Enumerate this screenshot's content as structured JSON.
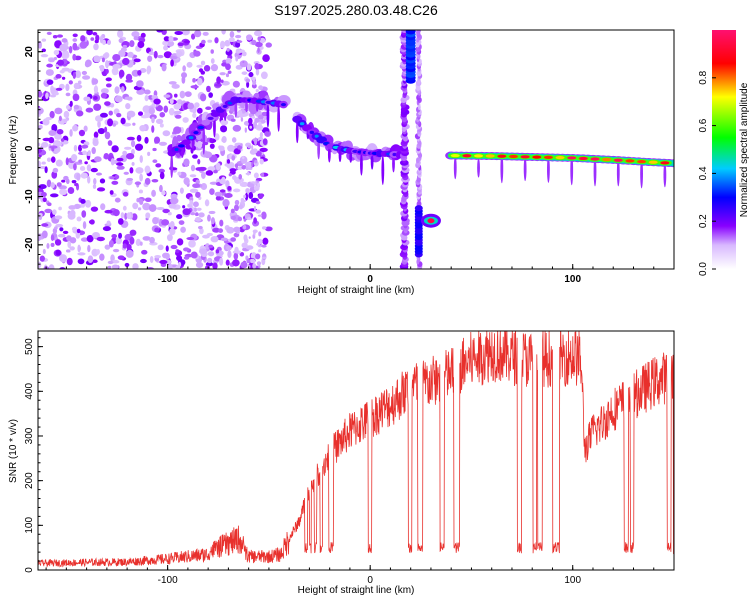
{
  "title": "S197.2025.280.03.48.C26",
  "chart_data": [
    {
      "type": "heatmap",
      "xlabel": "Height of straight line (km)",
      "ylabel": "Frequency (Hz)",
      "xlim": [
        -164,
        150
      ],
      "ylim": [
        -25,
        24.5
      ],
      "x_ticks": [
        -100,
        0,
        100
      ],
      "x_tick_labels": [
        "-100",
        "0",
        "100"
      ],
      "y_ticks": [
        20,
        10,
        0,
        -10,
        -20
      ],
      "y_tick_labels": [
        "20",
        "10",
        "0",
        "-10",
        "-20"
      ],
      "colorbar": {
        "label": "Normalized spectral amplitude",
        "range": [
          0,
          1
        ],
        "ticks": [
          0.0,
          0.2,
          0.4,
          0.6,
          0.8
        ],
        "tick_labels": [
          "0.0",
          "0.2",
          "0.4",
          "0.6",
          "0.8"
        ],
        "colors": [
          "#ffffff",
          "#8800ff",
          "#0000ff",
          "#00ccff",
          "#00ff00",
          "#ffff00",
          "#ff0000",
          "#ff1070"
        ]
      },
      "features": [
        {
          "name": "noise region",
          "x_range": [
            -164,
            -50
          ],
          "amplitude": 0.1
        },
        {
          "name": "rising trace",
          "points": [
            [
              -98,
              -1
            ],
            [
              -90,
              1.5
            ],
            [
              -82,
              5
            ],
            [
              -74,
              8
            ],
            [
              -67,
              10
            ],
            [
              -60,
              10
            ],
            [
              -50,
              9.5
            ],
            [
              -42,
              9
            ]
          ],
          "amplitude": 0.35
        },
        {
          "name": "dip trace",
          "points": [
            [
              -36,
              6
            ],
            [
              -28,
              3
            ],
            [
              -20,
              0.5
            ],
            [
              -10,
              -0.5
            ],
            [
              0,
              -1
            ],
            [
              10,
              -1.2
            ],
            [
              15,
              -1.4
            ]
          ],
          "amplitude": 0.4
        },
        {
          "name": "vertical burst 1",
          "x": 17,
          "y_range": [
            -25,
            24.5
          ],
          "amplitude": 0.15
        },
        {
          "name": "vertical burst 2",
          "x": 24,
          "y_range": [
            -25,
            24.5
          ],
          "amplitude": 0.12
        },
        {
          "name": "isolated blob",
          "x": 30,
          "y": -15,
          "amplitude": 0.95
        },
        {
          "name": "strong trace",
          "points": [
            [
              40,
              -1.5
            ],
            [
              60,
              -1.6
            ],
            [
              80,
              -1.8
            ],
            [
              100,
              -2.0
            ],
            [
              120,
              -2.4
            ],
            [
              140,
              -2.9
            ],
            [
              150,
              -3.1
            ]
          ],
          "amplitude": 0.9
        }
      ]
    },
    {
      "type": "line",
      "xlabel": "Height of straight line (km)",
      "ylabel": "SNR (10 * v/v)",
      "xlim": [
        -164,
        150
      ],
      "ylim": [
        0,
        535
      ],
      "x_ticks": [
        -100,
        0,
        100
      ],
      "x_tick_labels": [
        "-100",
        "0",
        "100"
      ],
      "y_ticks": [
        0,
        100,
        200,
        300,
        400,
        500
      ],
      "y_tick_labels": [
        "0",
        "100",
        "200",
        "300",
        "400",
        "500"
      ],
      "color": "#e8302c",
      "series": [
        {
          "name": "SNR envelope",
          "x": [
            -164,
            -140,
            -120,
            -100,
            -80,
            -65,
            -60,
            -50,
            -44,
            -40,
            -35,
            -30,
            -20,
            -10,
            0,
            10,
            20,
            30,
            40,
            50,
            60,
            70,
            80,
            90,
            100,
            104,
            106,
            110,
            115,
            120,
            130,
            140,
            150
          ],
          "values": [
            15,
            17,
            18,
            25,
            35,
            60,
            30,
            30,
            35,
            70,
            110,
            180,
            260,
            310,
            340,
            370,
            410,
            420,
            440,
            470,
            490,
            480,
            470,
            475,
            480,
            470,
            270,
            310,
            330,
            360,
            390,
            420,
            440
          ]
        },
        {
          "name": "dropout level",
          "values": [
            50
          ]
        }
      ]
    }
  ]
}
